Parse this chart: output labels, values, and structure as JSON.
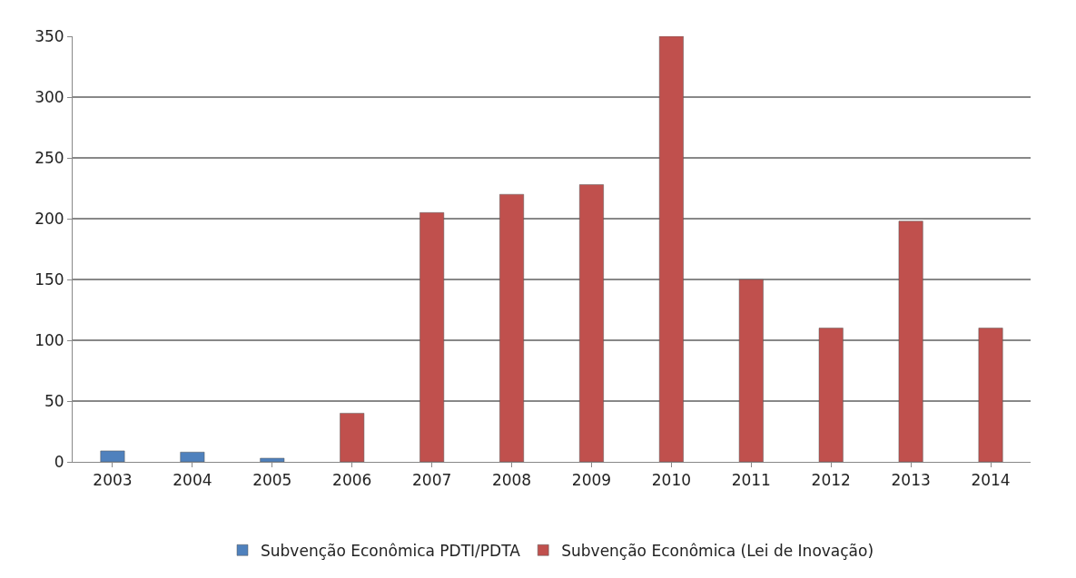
{
  "chart_data": {
    "type": "bar",
    "categories": [
      "2003",
      "2004",
      "2005",
      "2006",
      "2007",
      "2008",
      "2009",
      "2010",
      "2011",
      "2012",
      "2013",
      "2014"
    ],
    "series": [
      {
        "name": "Subvenção Econômica PDTI/PDTA",
        "color": "#4f81bd",
        "values": [
          9,
          8,
          3,
          null,
          null,
          null,
          null,
          null,
          null,
          null,
          null,
          null
        ]
      },
      {
        "name": "Subvenção Econômica (Lei de Inovação)",
        "color": "#c0504d",
        "values": [
          null,
          null,
          null,
          40,
          205,
          220,
          228,
          350,
          150,
          110,
          198,
          110
        ]
      }
    ],
    "ylim": [
      0,
      350
    ],
    "yticks": [
      0,
      50,
      100,
      150,
      200,
      250,
      300,
      350
    ],
    "grid": "y",
    "legend": "bottom"
  }
}
